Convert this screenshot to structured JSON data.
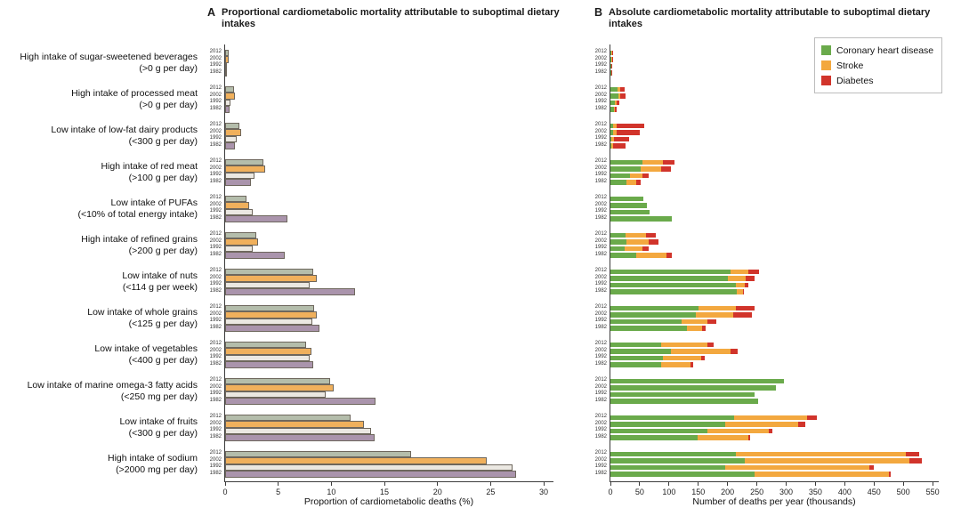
{
  "years": [
    "2012",
    "2002",
    "1992",
    "1982"
  ],
  "rows": [
    {
      "label": "High intake of sugar-sweetened beverages",
      "threshold": "(>0 g per day)"
    },
    {
      "label": "High intake of processed meat",
      "threshold": "(>0 g per day)"
    },
    {
      "label": "Low intake of low-fat dairy products",
      "threshold": "(<300 g per day)"
    },
    {
      "label": "High intake of red meat",
      "threshold": "(>100 g per day)"
    },
    {
      "label": "Low intake of PUFAs",
      "threshold": "(<10% of total energy intake)"
    },
    {
      "label": "High intake of refined grains",
      "threshold": "(>200 g per day)"
    },
    {
      "label": "Low intake of nuts",
      "threshold": "(<114 g per week)"
    },
    {
      "label": "Low intake of whole grains",
      "threshold": "(<125 g per day)"
    },
    {
      "label": "Low intake of vegetables",
      "threshold": "(<400 g per day)"
    },
    {
      "label": "Low intake of marine omega-3 fatty acids",
      "threshold": "(<250 mg per day)"
    },
    {
      "label": "Low intake of fruits",
      "threshold": "(<300 g per day)"
    },
    {
      "label": "High intake of sodium",
      "threshold": "(>2000 mg per day)"
    }
  ],
  "legend": {
    "items": [
      {
        "label": "Coronary heart disease",
        "color": "#6aaa4b"
      },
      {
        "label": "Stroke",
        "color": "#f3a83f"
      },
      {
        "label": "Diabetes",
        "color": "#d1342b"
      }
    ]
  },
  "chart_data": [
    {
      "type": "bar",
      "letter": "A",
      "title": "Proportional cardiometabolic mortality attributable to suboptimal dietary intakes",
      "xlabel": "Proportion of cardiometabolic deaths (%)",
      "xticks": [
        0,
        5,
        10,
        15,
        20,
        25,
        30
      ],
      "xlim": [
        0,
        31
      ],
      "grid": false,
      "legend_position": "none",
      "year_colors": {
        "2012": "#b4bdab",
        "2002": "#f0b05c",
        "1992": "#ebe8e2",
        "1982": "#aa94ac"
      },
      "bar_border_color": "#6e675d",
      "values": [
        [
          0.3,
          0.35,
          0.2,
          0.15
        ],
        [
          0.8,
          0.9,
          0.5,
          0.4
        ],
        [
          1.3,
          1.5,
          1.1,
          0.9
        ],
        [
          3.6,
          3.8,
          2.8,
          2.4
        ],
        [
          2.0,
          2.3,
          2.6,
          5.9
        ],
        [
          2.9,
          3.1,
          2.6,
          5.6
        ],
        [
          8.3,
          8.6,
          8.0,
          12.2
        ],
        [
          8.4,
          8.6,
          8.2,
          8.9
        ],
        [
          7.6,
          8.1,
          8.0,
          8.3
        ],
        [
          9.9,
          10.2,
          9.5,
          14.2
        ],
        [
          11.8,
          13.1,
          13.7,
          14.1
        ],
        [
          17.5,
          24.6,
          27.1,
          27.4
        ]
      ]
    },
    {
      "type": "stacked-bar",
      "letter": "B",
      "title": "Absolute cardiometabolic mortality attributable to suboptimal dietary intakes",
      "xlabel": "Number of deaths per year (thousands)",
      "xticks": [
        0,
        50,
        100,
        150,
        200,
        250,
        300,
        350,
        400,
        450,
        500,
        550
      ],
      "xlim": [
        0,
        562
      ],
      "grid": false,
      "legend_position": "top-right",
      "series": [
        "Coronary heart disease",
        "Stroke",
        "Diabetes"
      ],
      "values": [
        [
          [
            2,
            1,
            2
          ],
          [
            2,
            1,
            2
          ],
          [
            1,
            1,
            1
          ],
          [
            1,
            0.5,
            1
          ]
        ],
        [
          [
            12,
            4,
            9
          ],
          [
            13,
            4,
            9
          ],
          [
            8,
            3,
            4
          ],
          [
            6,
            2,
            3
          ]
        ],
        [
          [
            4,
            6,
            48
          ],
          [
            4,
            6,
            40
          ],
          [
            2,
            4,
            26
          ],
          [
            2,
            3,
            21
          ]
        ],
        [
          [
            55,
            35,
            20
          ],
          [
            52,
            34,
            18
          ],
          [
            34,
            21,
            11
          ],
          [
            28,
            16,
            8
          ]
        ],
        [
          [
            56,
            0,
            0
          ],
          [
            62,
            0,
            0
          ],
          [
            67,
            0,
            0
          ],
          [
            105,
            0,
            0
          ]
        ],
        [
          [
            26,
            35,
            16
          ],
          [
            28,
            37,
            17
          ],
          [
            24,
            31,
            11
          ],
          [
            44,
            51,
            10
          ]
        ],
        [
          [
            205,
            31,
            17
          ],
          [
            200,
            31,
            15
          ],
          [
            214,
            16,
            6
          ],
          [
            215,
            11,
            2
          ]
        ],
        [
          [
            150,
            64,
            32
          ],
          [
            146,
            64,
            31
          ],
          [
            121,
            44,
            16
          ],
          [
            131,
            26,
            6
          ]
        ],
        [
          [
            86,
            79,
            11
          ],
          [
            104,
            101,
            12
          ],
          [
            89,
            66,
            6
          ],
          [
            86,
            51,
            4
          ]
        ],
        [
          [
            296,
            0,
            0
          ],
          [
            282,
            0,
            0
          ],
          [
            246,
            0,
            0
          ],
          [
            252,
            0,
            0
          ]
        ],
        [
          [
            211,
            124,
            17
          ],
          [
            196,
            124,
            12
          ],
          [
            166,
            104,
            7
          ],
          [
            149,
            86,
            3
          ]
        ],
        [
          [
            214,
            291,
            22
          ],
          [
            229,
            281,
            22
          ],
          [
            196,
            246,
            8
          ],
          [
            246,
            230,
            3
          ]
        ]
      ]
    }
  ]
}
